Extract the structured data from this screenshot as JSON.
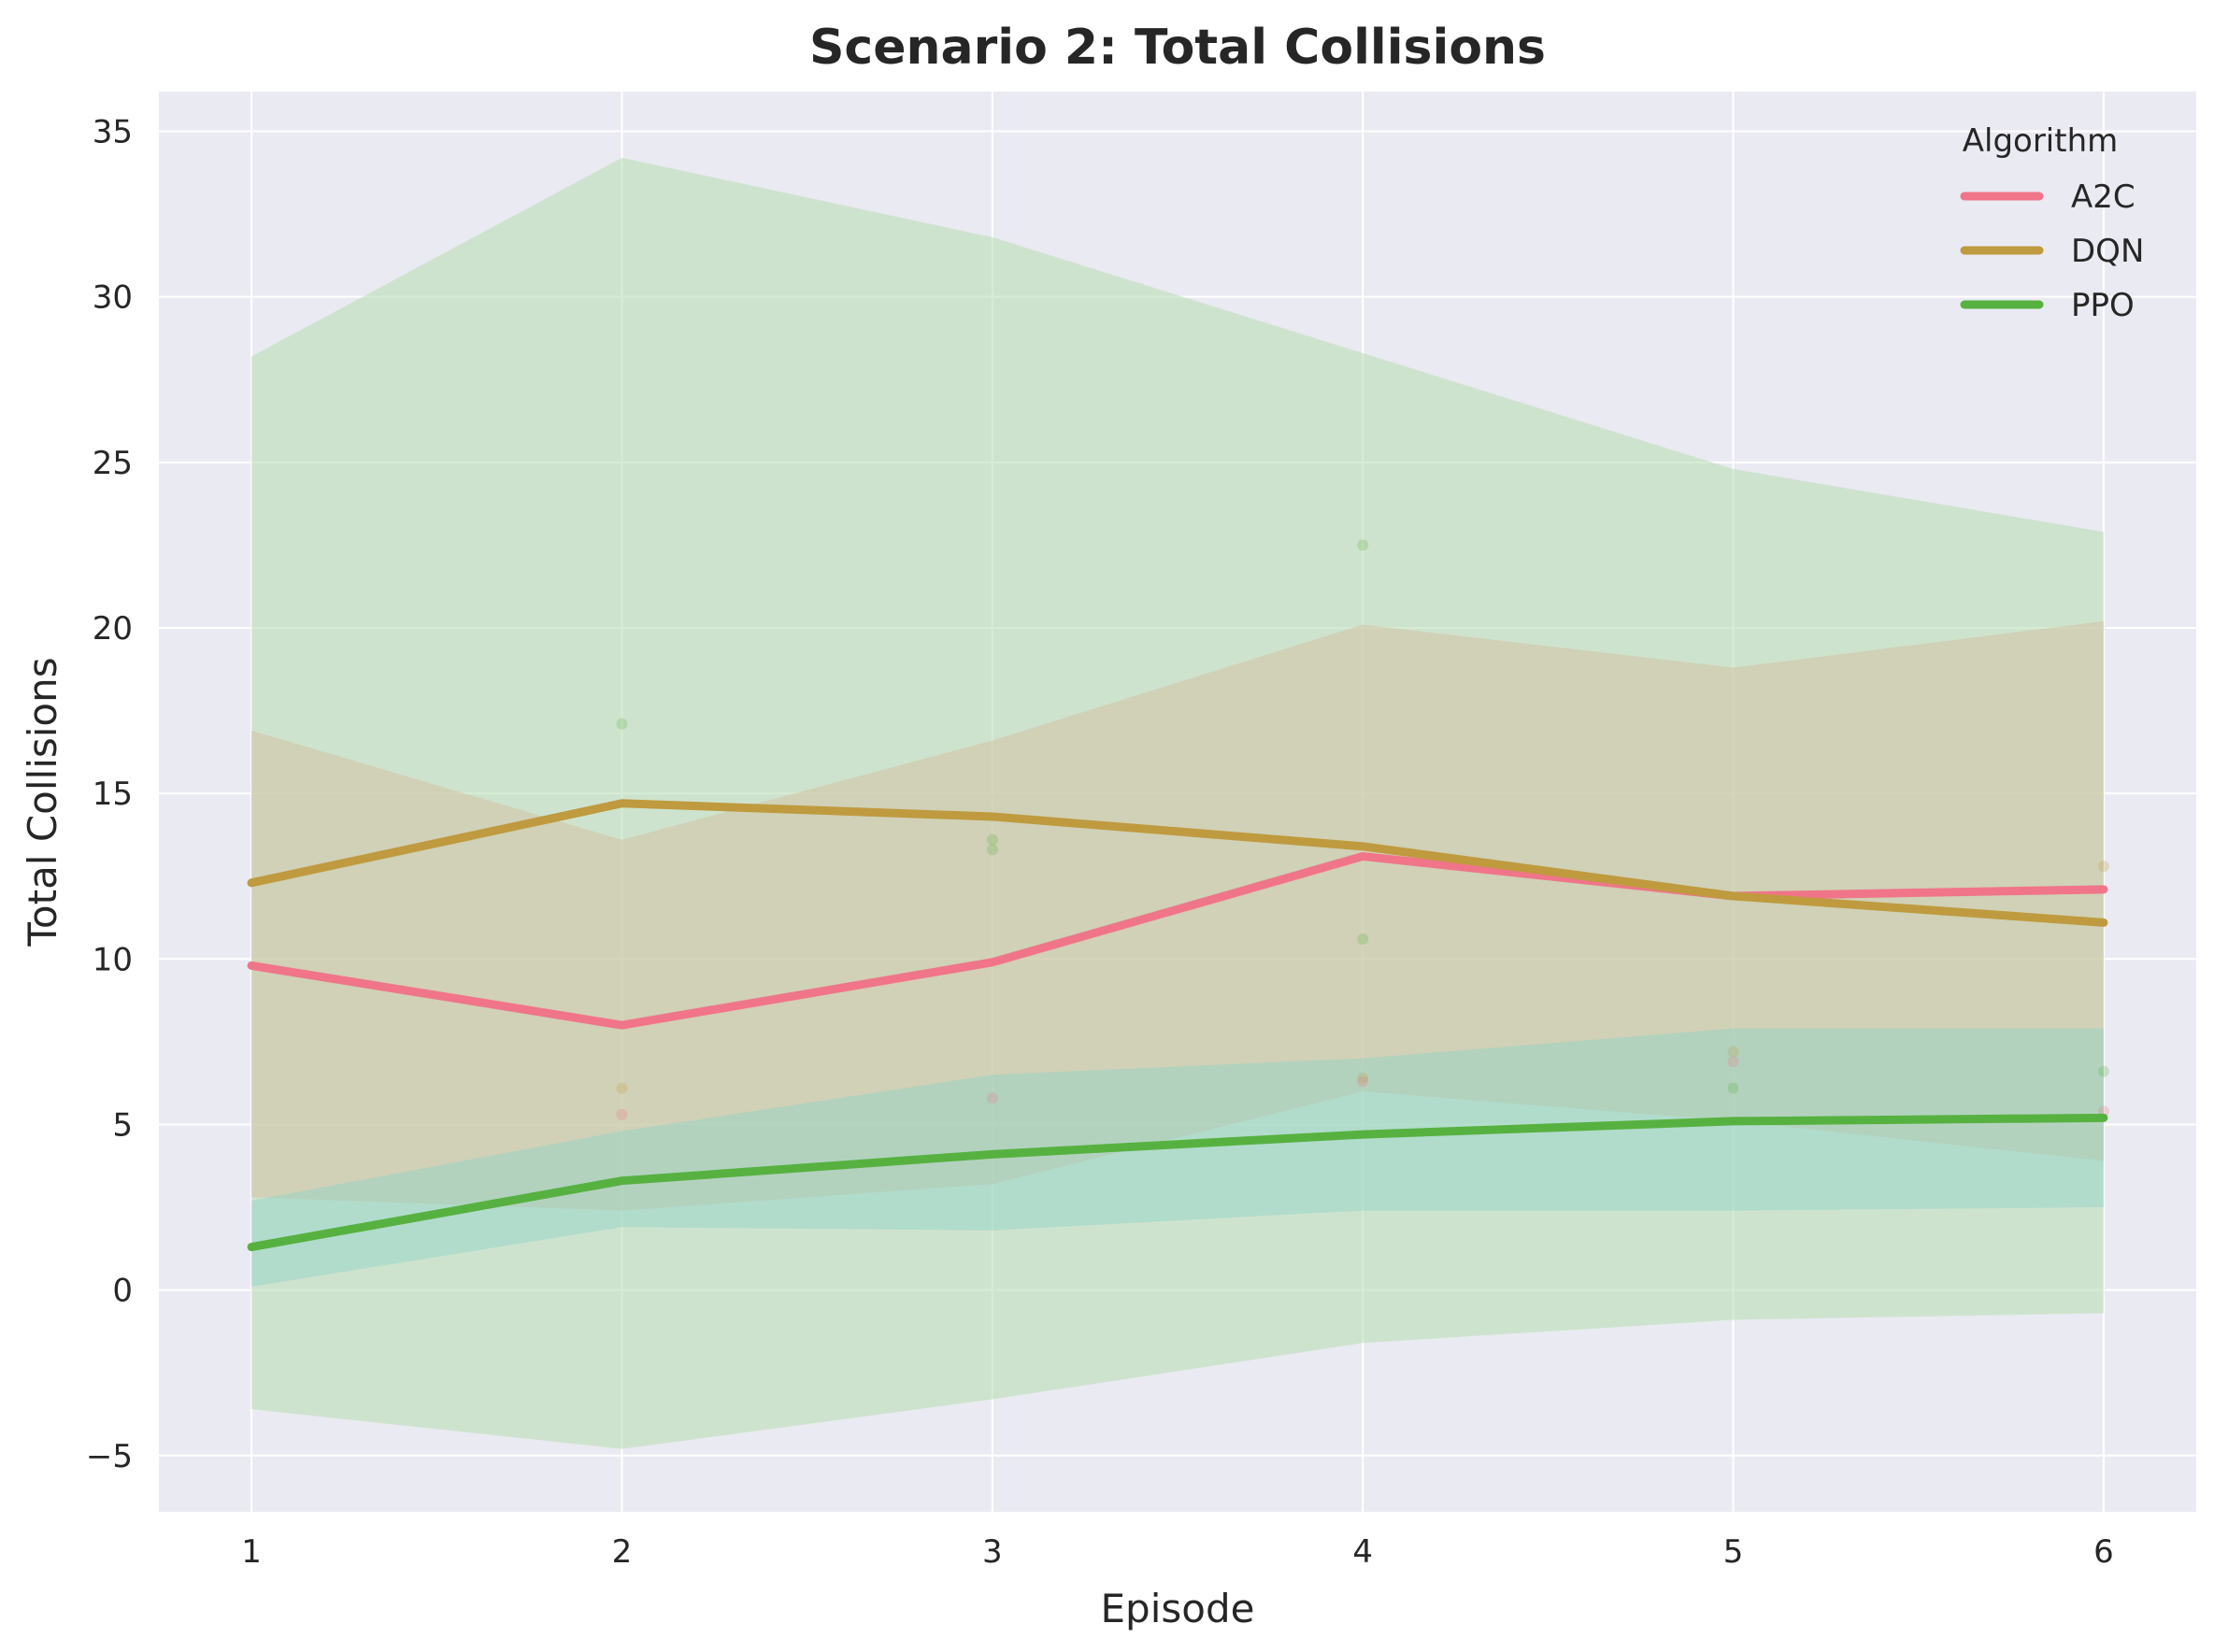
{
  "chart_data": {
    "type": "line",
    "title": "Scenario 2: Total Collisions",
    "xlabel": "Episode",
    "ylabel": "Total Collisions",
    "x": [
      1,
      2,
      3,
      4,
      5,
      6
    ],
    "xlim": [
      0.75,
      6.25
    ],
    "ylim": [
      -6.7,
      36.2
    ],
    "xticks": [
      "1",
      "2",
      "3",
      "4",
      "5",
      "6"
    ],
    "yticks": [
      -5,
      0,
      5,
      10,
      15,
      20,
      25,
      30,
      35
    ],
    "ytick_labels": [
      "−5",
      "0",
      "5",
      "10",
      "15",
      "20",
      "25",
      "30",
      "35"
    ],
    "grid": true,
    "legend": {
      "title": "Algorithm",
      "position": "top-right"
    },
    "series": [
      {
        "name": "A2C",
        "color": "#f07589",
        "band_color": "#8dd3c7",
        "values": [
          9.8,
          8.0,
          9.9,
          13.1,
          11.9,
          12.1
        ],
        "band_lower": [
          0.1,
          1.9,
          1.8,
          2.4,
          2.4,
          2.5
        ],
        "band_upper": [
          2.7,
          4.8,
          6.5,
          7.0,
          7.9,
          7.9
        ],
        "scatter": [
          [
            2,
            5.3
          ],
          [
            3,
            5.8
          ],
          [
            4,
            6.3
          ],
          [
            5,
            6.9
          ],
          [
            6,
            5.4
          ]
        ]
      },
      {
        "name": "DQN",
        "color": "#bf9a3e",
        "band_color": "#d2c2a3",
        "values": [
          12.3,
          14.7,
          14.3,
          13.4,
          11.9,
          11.1
        ],
        "band_lower": [
          2.8,
          2.4,
          3.2,
          6.0,
          5.1,
          3.9
        ],
        "band_upper": [
          16.9,
          13.6,
          16.6,
          20.1,
          18.8,
          20.2
        ],
        "scatter": [
          [
            2,
            6.1
          ],
          [
            4,
            6.4
          ],
          [
            5,
            7.2
          ],
          [
            6,
            12.8
          ]
        ]
      },
      {
        "name": "PPO",
        "color": "#57b140",
        "band_color": "#b6ddb0",
        "values": [
          1.3,
          3.3,
          4.1,
          4.7,
          5.1,
          5.2
        ],
        "band_lower": [
          -3.6,
          -4.8,
          -3.3,
          -1.6,
          -0.9,
          -0.7
        ],
        "band_upper": [
          28.2,
          34.2,
          31.8,
          28.3,
          24.8,
          22.9
        ],
        "scatter": [
          [
            2,
            17.1
          ],
          [
            3,
            13.3
          ],
          [
            3,
            13.6
          ],
          [
            4,
            22.5
          ],
          [
            4,
            10.6
          ],
          [
            5,
            6.1
          ],
          [
            6,
            6.6
          ]
        ]
      }
    ]
  }
}
